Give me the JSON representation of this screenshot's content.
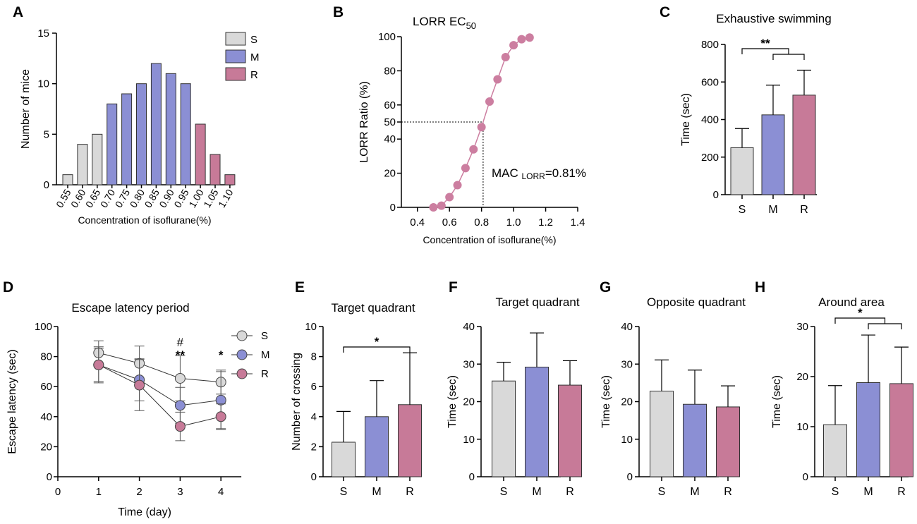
{
  "colors": {
    "S": "#d9d9d9",
    "M": "#8b8fd4",
    "R": "#c77a98",
    "R_curve": "#cc7ea0",
    "axis": "#000000"
  },
  "chart_data": [
    {
      "panel": "A",
      "type": "bar",
      "title": "",
      "xlabel": "Concentration of isoflurane(%)",
      "ylabel": "Number of mice",
      "ylim": [
        0,
        15
      ],
      "yticks": [
        "0",
        "5",
        "10",
        "15"
      ],
      "categories": [
        "0.55",
        "0.60",
        "0.65",
        "0.70",
        "0.75",
        "0.80",
        "0.85",
        "0.90",
        "0.95",
        "1.00",
        "1.05",
        "1.10"
      ],
      "values": [
        1,
        4,
        5,
        8,
        9,
        10,
        12,
        11,
        10,
        6,
        3,
        1
      ],
      "groups": [
        "S",
        "S",
        "S",
        "M",
        "M",
        "M",
        "M",
        "M",
        "M",
        "R",
        "R",
        "R"
      ],
      "legend": [
        "S",
        "M",
        "R"
      ]
    },
    {
      "panel": "B",
      "type": "line",
      "title": "LORR EC",
      "title_sub": "50",
      "xlabel": "Concentration of isoflurane(%)",
      "ylabel": "LORR Ratio (%)",
      "xlim": [
        0.3,
        1.4
      ],
      "ylim": [
        0,
        100
      ],
      "xticks": [
        "0.4",
        "0.6",
        "0.8",
        "1.0",
        "1.2",
        "1.4"
      ],
      "yticks": [
        "0",
        "20",
        "40",
        "50",
        "60",
        "80",
        "100"
      ],
      "x": [
        0.5,
        0.55,
        0.6,
        0.65,
        0.7,
        0.75,
        0.8,
        0.85,
        0.9,
        0.95,
        1.0,
        1.05,
        1.1
      ],
      "y": [
        0,
        1,
        6,
        13,
        23,
        34,
        47,
        62,
        75,
        88,
        95,
        98.5,
        99.5
      ],
      "annotation": {
        "text_pre": "MAC ",
        "text_sub": "LORR",
        "text_post": "=0.81%",
        "x": 0.81,
        "y": 50
      }
    },
    {
      "panel": "C",
      "type": "bar",
      "title": "Exhaustive swimming",
      "ylabel": "Time (sec)",
      "ylim": [
        0,
        800
      ],
      "yticks": [
        "0",
        "200",
        "400",
        "600",
        "800"
      ],
      "categories": [
        "S",
        "M",
        "R"
      ],
      "values": [
        250,
        425,
        530
      ],
      "errors": [
        102,
        158,
        133
      ],
      "significance": "**"
    },
    {
      "panel": "D",
      "type": "line",
      "title": "Escape latency period",
      "xlabel": "Time (day)",
      "ylabel": "Escape latency (sec)",
      "xlim": [
        0,
        4.5
      ],
      "ylim": [
        0,
        100
      ],
      "xticks": [
        "0",
        "1",
        "2",
        "3",
        "4"
      ],
      "yticks": [
        "0",
        "20",
        "40",
        "60",
        "80",
        "100"
      ],
      "x": [
        1,
        2,
        3,
        4
      ],
      "series": [
        {
          "name": "S",
          "values": [
            82.5,
            75.5,
            65.5,
            63
          ],
          "errors": [
            8,
            11.5,
            15,
            8
          ]
        },
        {
          "name": "M",
          "values": [
            74.5,
            64.5,
            47.5,
            51
          ],
          "errors": [
            11,
            14,
            12,
            19
          ]
        },
        {
          "name": "R",
          "values": [
            74.5,
            61,
            33.5,
            40
          ],
          "errors": [
            12,
            17,
            9.5,
            8.5
          ]
        }
      ],
      "marks": [
        {
          "x": 3,
          "text_top": "#",
          "text_bottom": "**"
        },
        {
          "x": 4,
          "text_bottom": "*"
        }
      ]
    },
    {
      "panel": "E",
      "type": "bar",
      "title": "Target quadrant",
      "ylabel": "Number of crossing",
      "ylim": [
        0,
        10
      ],
      "yticks": [
        "0",
        "2",
        "4",
        "6",
        "8",
        "10"
      ],
      "categories": [
        "S",
        "M",
        "R"
      ],
      "values": [
        2.3,
        4.0,
        4.8
      ],
      "errors": [
        2.05,
        2.4,
        3.45
      ],
      "significance": "*"
    },
    {
      "panel": "F",
      "type": "bar",
      "title": "Target quadrant",
      "ylabel": "Time (sec)",
      "ylim": [
        0,
        40
      ],
      "yticks": [
        "0",
        "10",
        "20",
        "30",
        "40"
      ],
      "categories": [
        "S",
        "M",
        "R"
      ],
      "values": [
        25.5,
        29.2,
        24.4
      ],
      "errors": [
        5.0,
        9.1,
        6.5
      ]
    },
    {
      "panel": "G",
      "type": "bar",
      "title": "Opposite quadrant",
      "ylabel": "Time (sec)",
      "ylim": [
        0,
        40
      ],
      "yticks": [
        "0",
        "10",
        "20",
        "30",
        "40"
      ],
      "categories": [
        "S",
        "M",
        "R"
      ],
      "values": [
        22.8,
        19.3,
        18.6
      ],
      "errors": [
        8.3,
        9.1,
        5.6
      ]
    },
    {
      "panel": "H",
      "type": "bar",
      "title": "Around area",
      "ylabel": "Time (sec)",
      "ylim": [
        0,
        30
      ],
      "yticks": [
        "0",
        "10",
        "20",
        "30"
      ],
      "categories": [
        "S",
        "M",
        "R"
      ],
      "values": [
        10.4,
        18.8,
        18.6
      ],
      "errors": [
        7.8,
        9.5,
        7.3
      ],
      "significance": "*"
    }
  ]
}
